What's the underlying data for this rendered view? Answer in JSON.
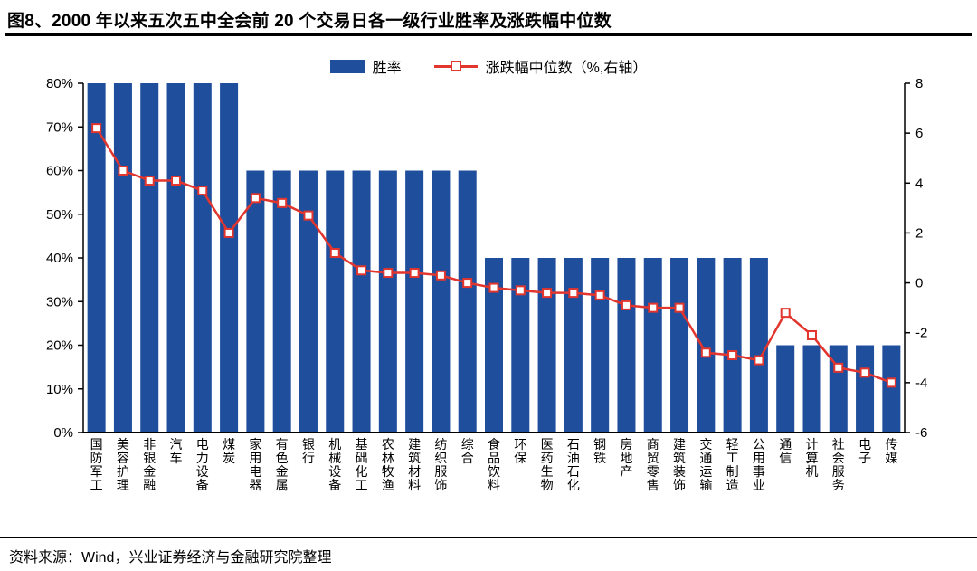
{
  "page": {
    "title": "图8、2000 年以来五次五中全会前 20 个交易日各一级行业胜率及涨跌幅中位数",
    "source": "资料来源：Wind，兴业证券经济与金融研究院整理"
  },
  "legend": {
    "bar_label": "胜率",
    "line_label": "涨跌幅中位数（%,右轴）"
  },
  "colors": {
    "bar": "#1F4E9C",
    "line": "#E2352E",
    "axis": "#000000"
  },
  "chart_data": {
    "type": "bar",
    "subtype": "bar+line dual axis",
    "title": "2000 年以来五次五中全会前 20 个交易日各一级行业胜率及涨跌幅中位数",
    "grid": false,
    "legend_position": "top",
    "categories": [
      "国防军工",
      "美容护理",
      "非银金融",
      "汽车",
      "电力设备",
      "煤炭",
      "家用电器",
      "有色金属",
      "银行",
      "机械设备",
      "基础化工",
      "农林牧渔",
      "建筑材料",
      "纺织服饰",
      "综合",
      "食品饮料",
      "环保",
      "医药生物",
      "石油石化",
      "钢铁",
      "房地产",
      "商贸零售",
      "建筑装饰",
      "交通运输",
      "轻工制造",
      "公用事业",
      "通信",
      "计算机",
      "社会服务",
      "电子",
      "传媒"
    ],
    "series": [
      {
        "name": "胜率",
        "type": "bar",
        "axis": "left",
        "values": [
          80,
          80,
          80,
          80,
          80,
          80,
          60,
          60,
          60,
          60,
          60,
          60,
          60,
          60,
          60,
          40,
          40,
          40,
          40,
          40,
          40,
          40,
          40,
          40,
          40,
          40,
          20,
          20,
          20,
          20,
          20
        ]
      },
      {
        "name": "涨跌幅中位数（%,右轴）",
        "type": "line",
        "axis": "right",
        "values": [
          6.2,
          4.5,
          4.1,
          4.1,
          3.7,
          2.0,
          3.4,
          3.2,
          2.7,
          1.2,
          0.5,
          0.4,
          0.4,
          0.3,
          0.0,
          -0.2,
          -0.3,
          -0.4,
          -0.4,
          -0.5,
          -0.9,
          -1.0,
          -1.0,
          -2.8,
          -2.9,
          -3.1,
          -1.2,
          -2.1,
          -3.4,
          -3.6,
          -4.0
        ]
      }
    ],
    "left_axis": {
      "min": 0,
      "max": 80,
      "step": 10,
      "format": "percent",
      "tick_labels": [
        "0%",
        "10%",
        "20%",
        "30%",
        "40%",
        "50%",
        "60%",
        "70%",
        "80%"
      ]
    },
    "right_axis": {
      "min": -6,
      "max": 8,
      "step": 2,
      "tick_labels": [
        "-6",
        "-4",
        "-2",
        "0",
        "2",
        "4",
        "6",
        "8"
      ]
    }
  }
}
